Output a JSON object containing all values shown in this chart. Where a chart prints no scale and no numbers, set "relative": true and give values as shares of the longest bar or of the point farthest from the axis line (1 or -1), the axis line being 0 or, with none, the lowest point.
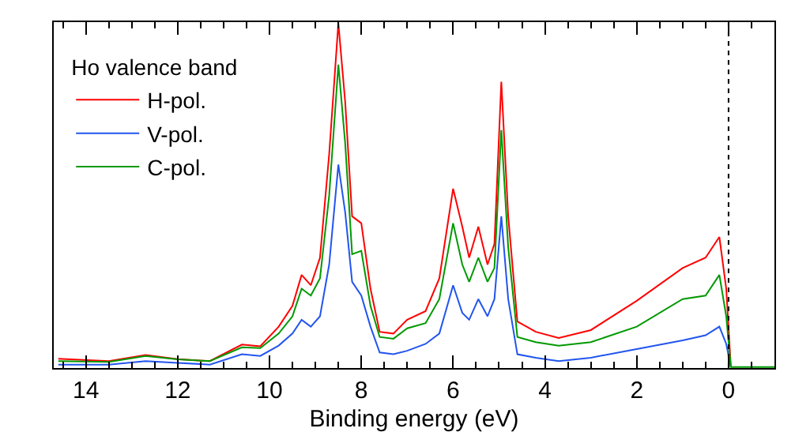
{
  "chart_data": {
    "type": "line",
    "relative": true,
    "xlabel": "Binding energy (eV)",
    "legend_title": "Ho valence band",
    "xlim": [
      14.7,
      -1
    ],
    "xticks": [
      14,
      12,
      10,
      8,
      6,
      4,
      2,
      0
    ],
    "x": [
      14.6,
      13.5,
      12.7,
      12,
      11.3,
      10.6,
      10.2,
      9.8,
      9.5,
      9.3,
      9.1,
      8.9,
      8.7,
      8.5,
      8.35,
      8.2,
      8.0,
      7.8,
      7.6,
      7.3,
      7.0,
      6.6,
      6.3,
      6.0,
      5.8,
      5.65,
      5.45,
      5.25,
      5.1,
      4.95,
      4.8,
      4.6,
      4.2,
      3.7,
      3.0,
      2.0,
      1.0,
      0.5,
      0.2,
      0.05,
      -0.05,
      -1.0
    ],
    "series": [
      {
        "name": "H-pol.",
        "color": "#ff0000",
        "values": [
          0.027,
          0.02,
          0.038,
          0.026,
          0.02,
          0.068,
          0.063,
          0.12,
          0.18,
          0.27,
          0.24,
          0.32,
          0.62,
          1.0,
          0.77,
          0.44,
          0.42,
          0.23,
          0.105,
          0.1,
          0.14,
          0.165,
          0.26,
          0.52,
          0.41,
          0.32,
          0.41,
          0.3,
          0.36,
          0.83,
          0.44,
          0.135,
          0.105,
          0.087,
          0.11,
          0.195,
          0.29,
          0.32,
          0.38,
          0.23,
          0.003,
          null
        ]
      },
      {
        "name": "V-pol.",
        "color": "#2255ee",
        "values": [
          0.01,
          0.01,
          0.02,
          0.015,
          0.01,
          0.04,
          0.035,
          0.065,
          0.1,
          0.14,
          0.12,
          0.15,
          0.3,
          0.59,
          0.45,
          0.25,
          0.21,
          0.12,
          0.045,
          0.04,
          0.05,
          0.07,
          0.1,
          0.24,
          0.16,
          0.14,
          0.2,
          0.15,
          0.2,
          0.44,
          0.2,
          0.04,
          0.03,
          0.02,
          0.03,
          0.055,
          0.08,
          0.095,
          0.12,
          0.07,
          0.003,
          null
        ]
      },
      {
        "name": "C-pol.",
        "color": "#009900",
        "values": [
          0.02,
          0.018,
          0.035,
          0.025,
          0.02,
          0.06,
          0.058,
          0.1,
          0.15,
          0.23,
          0.21,
          0.26,
          0.5,
          0.88,
          0.65,
          0.33,
          0.34,
          0.18,
          0.09,
          0.085,
          0.115,
          0.13,
          0.2,
          0.42,
          0.3,
          0.25,
          0.32,
          0.25,
          0.29,
          0.69,
          0.35,
          0.09,
          0.075,
          0.065,
          0.075,
          0.12,
          0.2,
          0.21,
          0.27,
          0.15,
          0.003,
          0.003
        ]
      }
    ],
    "ref_lines": [
      {
        "axis": "x",
        "value": 0,
        "color": "#000000",
        "line_style": "dotted"
      }
    ],
    "legend": "top left",
    "grid": false,
    "marker": "none",
    "line_style": "solid"
  }
}
